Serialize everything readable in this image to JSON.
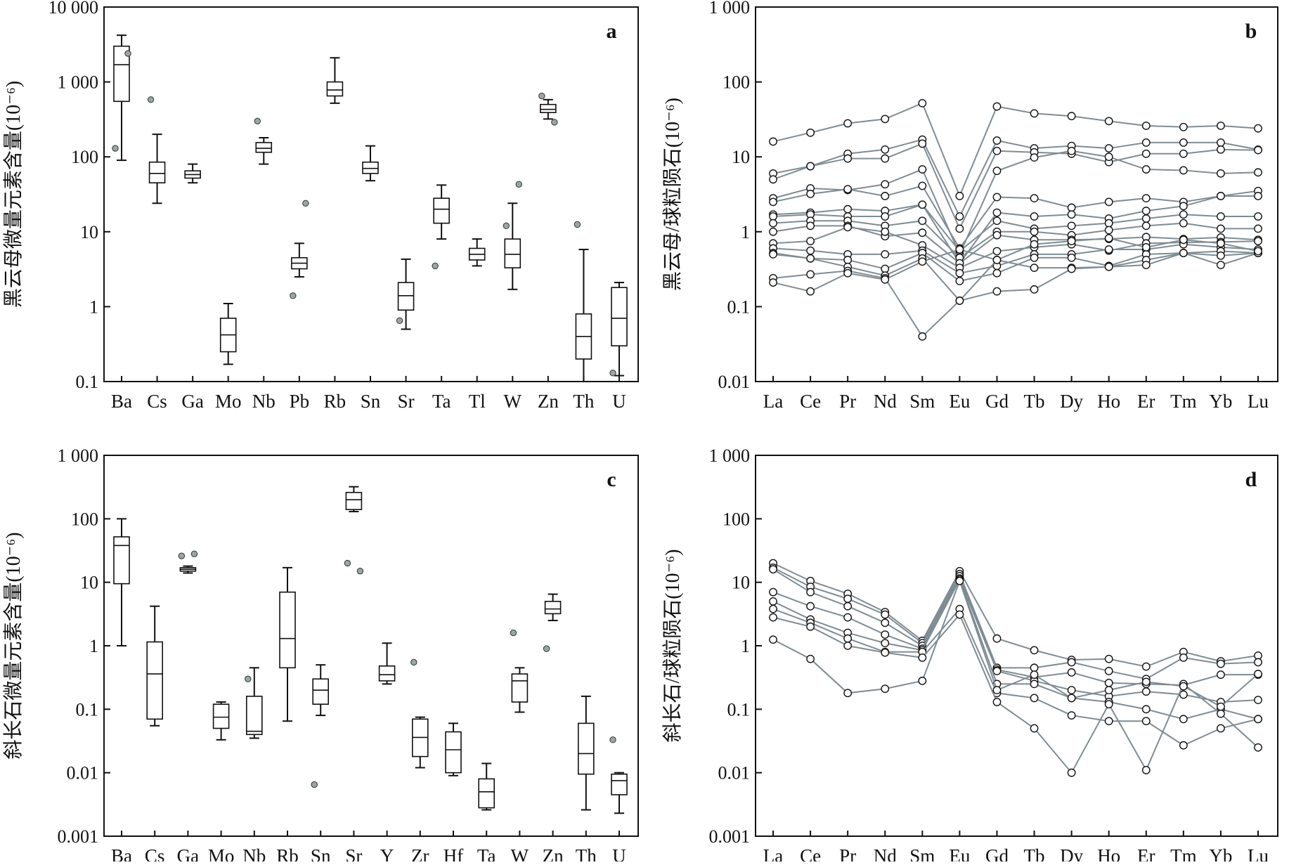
{
  "colors": {
    "axis": "#111111",
    "series_line": "#7f8c93",
    "dot_fill": "#9aa6a6",
    "dot_stroke": "#333333",
    "box": "#111111"
  },
  "chart_data": [
    {
      "type": "box",
      "panel": "a",
      "ylabel": "黑云母微量元素含量(10⁻⁶)",
      "yscale": "log",
      "ylim": [
        0.1,
        10000
      ],
      "yticks": [
        "0.1",
        "1",
        "10",
        "100",
        "1 000",
        "10 000"
      ],
      "categories": [
        "Ba",
        "Cs",
        "Ga",
        "Mo",
        "Nb",
        "Pb",
        "Rb",
        "Sn",
        "Sr",
        "Ta",
        "Tl",
        "W",
        "Zn",
        "Th",
        "U"
      ],
      "boxes": [
        {
          "min": 90,
          "q1": 550,
          "median": 1700,
          "q3": 3000,
          "max": 4200,
          "outliers": [
            130,
            2400
          ]
        },
        {
          "min": 24,
          "q1": 45,
          "median": 60,
          "q3": 85,
          "max": 200,
          "outliers": [
            580
          ]
        },
        {
          "min": 45,
          "q1": 52,
          "median": 58,
          "q3": 65,
          "max": 80,
          "outliers": []
        },
        {
          "min": 0.17,
          "q1": 0.25,
          "median": 0.42,
          "q3": 0.7,
          "max": 1.1,
          "outliers": []
        },
        {
          "min": 80,
          "q1": 115,
          "median": 130,
          "q3": 155,
          "max": 180,
          "outliers": [
            300
          ]
        },
        {
          "min": 2.5,
          "q1": 3.2,
          "median": 3.8,
          "q3": 4.5,
          "max": 7,
          "outliers": [
            1.4,
            24
          ]
        },
        {
          "min": 520,
          "q1": 650,
          "median": 780,
          "q3": 1000,
          "max": 2100,
          "outliers": []
        },
        {
          "min": 48,
          "q1": 60,
          "median": 70,
          "q3": 85,
          "max": 140,
          "outliers": []
        },
        {
          "min": 0.5,
          "q1": 0.9,
          "median": 1.4,
          "q3": 2.1,
          "max": 4.3,
          "outliers": [
            0.65
          ]
        },
        {
          "min": 8,
          "q1": 13,
          "median": 20,
          "q3": 28,
          "max": 42,
          "outliers": [
            3.5
          ]
        },
        {
          "min": 3.5,
          "q1": 4.2,
          "median": 5,
          "q3": 6,
          "max": 8,
          "outliers": []
        },
        {
          "min": 1.7,
          "q1": 3.3,
          "median": 5,
          "q3": 8,
          "max": 24,
          "outliers": [
            12,
            43
          ]
        },
        {
          "min": 320,
          "q1": 390,
          "median": 430,
          "q3": 500,
          "max": 580,
          "outliers": [
            650,
            290
          ]
        },
        {
          "min": 0.1,
          "q1": 0.2,
          "median": 0.4,
          "q3": 0.8,
          "max": 5.8,
          "outliers": [
            12.5
          ]
        },
        {
          "min": 0.12,
          "q1": 0.3,
          "median": 0.7,
          "q3": 1.8,
          "max": 2.1,
          "outliers": [
            0.13
          ]
        }
      ]
    },
    {
      "type": "line",
      "panel": "b",
      "ylabel": "黑云母/球粒陨石(10⁻⁶)",
      "yscale": "log",
      "ylim": [
        0.01,
        1000
      ],
      "yticks": [
        "0.01",
        "0.1",
        "1",
        "10",
        "100",
        "1 000"
      ],
      "categories": [
        "La",
        "Ce",
        "Pr",
        "Nd",
        "Sm",
        "Eu",
        "Gd",
        "Tb",
        "Dy",
        "Ho",
        "Er",
        "Tm",
        "Yb",
        "Lu"
      ],
      "series": [
        {
          "values": [
            16,
            21,
            28,
            32,
            52,
            3,
            47,
            38,
            35,
            30,
            26,
            25,
            26,
            24
          ]
        },
        {
          "values": [
            6,
            7.5,
            11,
            12.5,
            17,
            1.6,
            16.5,
            13,
            14,
            13,
            15.5,
            15.5,
            15.5,
            12.5
          ]
        },
        {
          "values": [
            5,
            7.5,
            9.5,
            9.5,
            15,
            1.1,
            12,
            11.5,
            11,
            8.5,
            11,
            11,
            12.5,
            12.3
          ]
        },
        {
          "values": [
            2.8,
            3.8,
            3.6,
            4.3,
            6.8,
            0.5,
            6.5,
            9.8,
            12,
            10,
            6.8,
            6.6,
            6,
            6.2
          ]
        },
        {
          "values": [
            2.5,
            3.2,
            3.7,
            3,
            4.1,
            0.6,
            2.9,
            2.8,
            2.1,
            2.5,
            2.8,
            2.5,
            3,
            3.5
          ]
        },
        {
          "values": [
            1.7,
            1.8,
            2,
            1.9,
            2.3,
            0.38,
            1.8,
            1.6,
            1.7,
            1.5,
            1.9,
            2.2,
            3,
            3
          ]
        },
        {
          "values": [
            1.6,
            1.7,
            1.6,
            1.6,
            2.3,
            0.55,
            1.4,
            1.1,
            1.2,
            1.3,
            1.5,
            1.7,
            1.6,
            1.6
          ]
        },
        {
          "values": [
            1.3,
            1.4,
            1.4,
            1.2,
            1.4,
            0.45,
            1,
            1,
            0.9,
            1.05,
            1.2,
            1.3,
            1.1,
            1.1
          ]
        },
        {
          "values": [
            1,
            1.2,
            1.2,
            0.87,
            0.97,
            0.38,
            0.9,
            0.78,
            0.78,
            0.8,
            0.85,
            0.8,
            0.84,
            0.78
          ]
        },
        {
          "values": [
            0.7,
            0.75,
            1.15,
            1,
            0.66,
            0.33,
            0.55,
            0.62,
            0.68,
            0.56,
            0.7,
            0.72,
            0.73,
            0.75
          ]
        },
        {
          "values": [
            0.6,
            0.56,
            0.5,
            0.5,
            0.56,
            0.28,
            0.35,
            0.5,
            0.5,
            0.58,
            0.58,
            0.68,
            0.62,
            0.58
          ]
        },
        {
          "values": [
            0.52,
            0.44,
            0.42,
            0.32,
            0.52,
            0.22,
            0.28,
            0.45,
            0.45,
            0.35,
            0.5,
            0.52,
            0.55,
            0.52
          ]
        },
        {
          "values": [
            0.5,
            0.44,
            0.34,
            0.26,
            0.44,
            0.12,
            0.42,
            0.33,
            0.33,
            0.34,
            0.42,
            0.52,
            0.48,
            0.52
          ]
        },
        {
          "values": [
            0.24,
            0.27,
            0.3,
            0.24,
            0.04,
            0.12,
            0.16,
            0.17,
            0.32,
            0.34,
            0.36,
            0.52,
            0.36,
            0.52
          ]
        },
        {
          "values": [
            0.21,
            0.16,
            0.28,
            0.23,
            0.4,
            0.58,
            0.42,
            0.68,
            0.75,
            0.82,
            0.62,
            0.78,
            0.7,
            0.55
          ]
        }
      ]
    },
    {
      "type": "box",
      "panel": "c",
      "ylabel": "斜长石微量元素含量(10⁻⁶)",
      "yscale": "log",
      "ylim": [
        0.001,
        1000
      ],
      "yticks": [
        "0.001",
        "0.01",
        "0.1",
        "1",
        "10",
        "100",
        "1 000"
      ],
      "categories": [
        "Ba",
        "Cs",
        "Ga",
        "Mo",
        "Nb",
        "Rb",
        "Sn",
        "Sr",
        "Y",
        "Zr",
        "Hf",
        "Ta",
        "W",
        "Zn",
        "Th",
        "U"
      ],
      "boxes": [
        {
          "min": 1,
          "q1": 9.5,
          "median": 38,
          "q3": 52,
          "max": 100,
          "outliers": []
        },
        {
          "min": 0.055,
          "q1": 0.07,
          "median": 0.36,
          "q3": 1.15,
          "max": 4.2,
          "outliers": []
        },
        {
          "min": 14,
          "q1": 15,
          "median": 16,
          "q3": 17,
          "max": 18,
          "outliers": [
            26,
            28
          ]
        },
        {
          "min": 0.033,
          "q1": 0.05,
          "median": 0.075,
          "q3": 0.12,
          "max": 0.13,
          "outliers": []
        },
        {
          "min": 0.035,
          "q1": 0.04,
          "median": 0.045,
          "q3": 0.16,
          "max": 0.45,
          "outliers": [
            0.3
          ]
        },
        {
          "min": 0.065,
          "q1": 0.45,
          "median": 1.3,
          "q3": 7,
          "max": 17,
          "outliers": []
        },
        {
          "min": 0.08,
          "q1": 0.12,
          "median": 0.2,
          "q3": 0.3,
          "max": 0.5,
          "outliers": [
            0.0065
          ]
        },
        {
          "min": 130,
          "q1": 140,
          "median": 200,
          "q3": 260,
          "max": 320,
          "outliers": [
            20,
            15
          ]
        },
        {
          "min": 0.25,
          "q1": 0.28,
          "median": 0.35,
          "q3": 0.48,
          "max": 1.1,
          "outliers": []
        },
        {
          "min": 0.012,
          "q1": 0.018,
          "median": 0.036,
          "q3": 0.07,
          "max": 0.075,
          "outliers": [
            0.55
          ]
        },
        {
          "min": 0.009,
          "q1": 0.01,
          "median": 0.023,
          "q3": 0.044,
          "max": 0.06,
          "outliers": []
        },
        {
          "min": 0.0026,
          "q1": 0.0028,
          "median": 0.005,
          "q3": 0.008,
          "max": 0.014,
          "outliers": []
        },
        {
          "min": 0.09,
          "q1": 0.13,
          "median": 0.28,
          "q3": 0.36,
          "max": 0.45,
          "outliers": [
            1.6
          ]
        },
        {
          "min": 2.5,
          "q1": 3.2,
          "median": 3.8,
          "q3": 5,
          "max": 6.5,
          "outliers": [
            0.9
          ]
        },
        {
          "min": 0.0026,
          "q1": 0.0095,
          "median": 0.02,
          "q3": 0.06,
          "max": 0.16,
          "outliers": []
        },
        {
          "min": 0.0023,
          "q1": 0.0045,
          "median": 0.0075,
          "q3": 0.0095,
          "max": 0.01,
          "outliers": [
            0.033
          ]
        }
      ]
    },
    {
      "type": "line",
      "panel": "d",
      "ylabel": "斜长石/球粒陨石(10⁻⁶)",
      "yscale": "log",
      "ylim": [
        0.001,
        1000
      ],
      "yticks": [
        "0.001",
        "0.01",
        "0.1",
        "1",
        "10",
        "100",
        "1 000"
      ],
      "categories": [
        "La",
        "Ce",
        "Pr",
        "Nd",
        "Sm",
        "Eu",
        "Gd",
        "Tb",
        "Dy",
        "Ho",
        "Er",
        "Tm",
        "Yb",
        "Lu"
      ],
      "series": [
        {
          "values": [
            20,
            10.5,
            6.6,
            3.4,
            1.2,
            15,
            1.3,
            0.85,
            0.6,
            0.62,
            0.47,
            0.8,
            0.57,
            0.7
          ]
        },
        {
          "values": [
            17,
            8.5,
            5.5,
            3.1,
            1.1,
            13.5,
            0.45,
            0.45,
            0.55,
            0.4,
            0.3,
            0.65,
            0.52,
            0.55
          ]
        },
        {
          "values": [
            16,
            7,
            4.2,
            2.3,
            1,
            12.5,
            0.42,
            0.32,
            0.38,
            0.26,
            0.25,
            0.24,
            0.35,
            0.35
          ]
        },
        {
          "values": [
            7,
            4.2,
            2.8,
            1.5,
            0.9,
            11.5,
            0.4,
            0.28,
            0.2,
            0.16,
            0.19,
            0.17,
            0.13,
            0.14
          ]
        },
        {
          "values": [
            5,
            2.6,
            1.6,
            1.1,
            0.85,
            11,
            0.25,
            0.25,
            0.15,
            0.13,
            0.1,
            0.07,
            0.1,
            0.07
          ]
        },
        {
          "values": [
            3.8,
            2.3,
            1.3,
            0.8,
            0.8,
            3.8,
            0.18,
            0.15,
            0.08,
            0.065,
            0.065,
            0.027,
            0.05,
            0.07
          ]
        },
        {
          "values": [
            2.8,
            2,
            1,
            0.78,
            0.65,
            3.1,
            0.13,
            0.05,
            0.01,
            0.12,
            0.011,
            0.25,
            0.085,
            0.025
          ]
        },
        {
          "values": [
            1.25,
            0.62,
            0.18,
            0.21,
            0.28,
            10.5,
            0.2,
            0.35,
            0.15,
            0.2,
            0.27,
            0.23,
            0.11,
            0.36
          ]
        }
      ]
    }
  ]
}
